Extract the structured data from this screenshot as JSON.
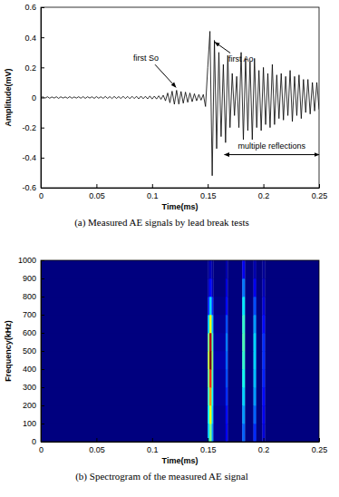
{
  "chart_data": [
    {
      "type": "line",
      "caption": "(a) Measured AE signals by lead break tests",
      "x_label": "Time(ms)",
      "y_label": "Amplitude(mV)",
      "color": "#000000",
      "xlim": [
        0,
        0.25
      ],
      "ylim": [
        -0.6,
        0.6
      ],
      "xticks": [
        0,
        0.05,
        0.1,
        0.15,
        0.2,
        0.25
      ],
      "yticks": [
        -0.6,
        -0.4,
        -0.2,
        0,
        0.2,
        0.4,
        0.6
      ],
      "x": [
        0,
        0.002,
        0.004,
        0.006,
        0.008,
        0.01,
        0.012,
        0.014,
        0.016,
        0.018,
        0.02,
        0.022,
        0.024,
        0.026,
        0.028,
        0.03,
        0.032,
        0.034,
        0.036,
        0.038,
        0.04,
        0.042,
        0.044,
        0.046,
        0.048,
        0.05,
        0.052,
        0.054,
        0.056,
        0.058,
        0.06,
        0.062,
        0.064,
        0.066,
        0.068,
        0.07,
        0.072,
        0.074,
        0.076,
        0.078,
        0.08,
        0.082,
        0.084,
        0.086,
        0.088,
        0.09,
        0.092,
        0.094,
        0.096,
        0.098,
        0.1,
        0.102,
        0.104,
        0.106,
        0.108,
        0.11,
        0.112,
        0.114,
        0.116,
        0.118,
        0.12,
        0.122,
        0.124,
        0.126,
        0.128,
        0.13,
        0.132,
        0.134,
        0.136,
        0.138,
        0.14,
        0.142,
        0.144,
        0.146,
        0.148,
        0.15,
        0.152,
        0.154,
        0.156,
        0.158,
        0.16,
        0.162,
        0.164,
        0.166,
        0.168,
        0.17,
        0.172,
        0.174,
        0.176,
        0.178,
        0.18,
        0.182,
        0.184,
        0.186,
        0.188,
        0.19,
        0.192,
        0.194,
        0.196,
        0.198,
        0.2,
        0.202,
        0.204,
        0.206,
        0.208,
        0.21,
        0.212,
        0.214,
        0.216,
        0.218,
        0.22,
        0.222,
        0.224,
        0.226,
        0.228,
        0.23,
        0.232,
        0.234,
        0.236,
        0.238,
        0.24,
        0.242,
        0.244,
        0.246,
        0.248,
        0.25
      ],
      "values": [
        0,
        0.004,
        -0.004,
        0.005,
        -0.005,
        0.004,
        -0.004,
        0.005,
        -0.006,
        0.005,
        -0.004,
        0.004,
        -0.005,
        0.006,
        -0.005,
        0.004,
        -0.004,
        0.005,
        -0.005,
        0.006,
        -0.006,
        0.005,
        -0.004,
        0.005,
        -0.006,
        0.006,
        -0.005,
        0.005,
        -0.006,
        0.007,
        -0.006,
        0.006,
        -0.007,
        0.007,
        -0.006,
        0.006,
        -0.007,
        0.008,
        -0.007,
        0.007,
        -0.008,
        0.008,
        -0.007,
        0.008,
        -0.009,
        0.009,
        -0.008,
        0.008,
        -0.009,
        0.01,
        -0.01,
        0.009,
        -0.01,
        0.011,
        -0.012,
        0.015,
        -0.022,
        0.03,
        -0.035,
        0.042,
        -0.045,
        0.048,
        -0.044,
        0.04,
        -0.038,
        0.036,
        -0.032,
        0.03,
        -0.028,
        0.025,
        -0.022,
        0.02,
        -0.018,
        0.02,
        -0.06,
        0.2,
        0.44,
        -0.52,
        0.38,
        -0.34,
        0.3,
        -0.26,
        0.22,
        -0.3,
        0.28,
        -0.2,
        0.16,
        -0.12,
        0.14,
        -0.2,
        0.3,
        -0.28,
        0.26,
        -0.22,
        0.24,
        -0.28,
        0.26,
        -0.2,
        0.18,
        -0.22,
        0.2,
        -0.18,
        0.16,
        -0.2,
        0.22,
        -0.18,
        0.15,
        -0.14,
        0.16,
        -0.15,
        0.14,
        -0.12,
        0.18,
        -0.16,
        0.14,
        -0.12,
        0.15,
        -0.14,
        0.12,
        -0.1,
        0.12,
        -0.11,
        0.1,
        -0.09,
        0.1,
        -0.08
      ],
      "annotations": [
        {
          "text": "first So",
          "x": 0.123,
          "y": 0.05
        },
        {
          "text": "first Ao",
          "x": 0.154,
          "y": 0.38
        },
        {
          "text": "multiple reflections",
          "x": 0.165,
          "x_end": 0.25,
          "y": -0.38
        }
      ]
    },
    {
      "type": "heatmap",
      "caption": "(b) Spectrogram of the measured AE signal",
      "x_label": "Time(ms)",
      "y_label": "Frequency(kHz)",
      "xlim": [
        0,
        0.25
      ],
      "ylim": [
        0,
        1000
      ],
      "xticks": [
        0,
        0.05,
        0.1,
        0.15,
        0.2,
        0.25
      ],
      "yticks": [
        0,
        100,
        200,
        300,
        400,
        500,
        600,
        700,
        800,
        900,
        1000
      ],
      "x_bins": [
        0,
        0.15,
        0.1515,
        0.1535,
        0.155,
        0.166,
        0.168,
        0.181,
        0.1835,
        0.191,
        0.1935,
        0.199,
        0.2015,
        0.25
      ],
      "y_bins": [
        0,
        100,
        200,
        300,
        400,
        500,
        600,
        700,
        800,
        900,
        1000
      ],
      "z": [
        [
          0,
          0.3,
          0.45,
          0.25,
          0.02,
          0.1,
          0,
          0.2,
          0,
          0.15,
          0,
          0.08,
          0
        ],
        [
          0,
          0.35,
          0.55,
          0.3,
          0.02,
          0.12,
          0,
          0.25,
          0,
          0.2,
          0,
          0.1,
          0
        ],
        [
          0,
          0.4,
          0.65,
          0.35,
          0.03,
          0.15,
          0,
          0.3,
          0,
          0.25,
          0,
          0.12,
          0
        ],
        [
          0,
          0.45,
          0.75,
          0.4,
          0.03,
          0.18,
          0,
          0.35,
          0,
          0.28,
          0,
          0.14,
          0
        ],
        [
          0,
          0.5,
          0.9,
          0.45,
          0.04,
          0.2,
          0,
          0.38,
          0,
          0.3,
          0,
          0.15,
          0
        ],
        [
          0,
          0.45,
          0.85,
          0.4,
          0.03,
          0.22,
          0,
          0.4,
          0,
          0.3,
          0,
          0.15,
          0
        ],
        [
          0,
          0.3,
          0.55,
          0.28,
          0.02,
          0.18,
          0,
          0.38,
          0,
          0.25,
          0,
          0.12,
          0
        ],
        [
          0,
          0.15,
          0.3,
          0.15,
          0.01,
          0.12,
          0,
          0.32,
          0,
          0.18,
          0,
          0.08,
          0
        ],
        [
          0,
          0.05,
          0.12,
          0.05,
          0,
          0.08,
          0,
          0.22,
          0,
          0.1,
          0,
          0.05,
          0
        ],
        [
          0,
          0.02,
          0.05,
          0.02,
          0,
          0.04,
          0,
          0.1,
          0,
          0.04,
          0,
          0.02,
          0
        ]
      ]
    }
  ]
}
